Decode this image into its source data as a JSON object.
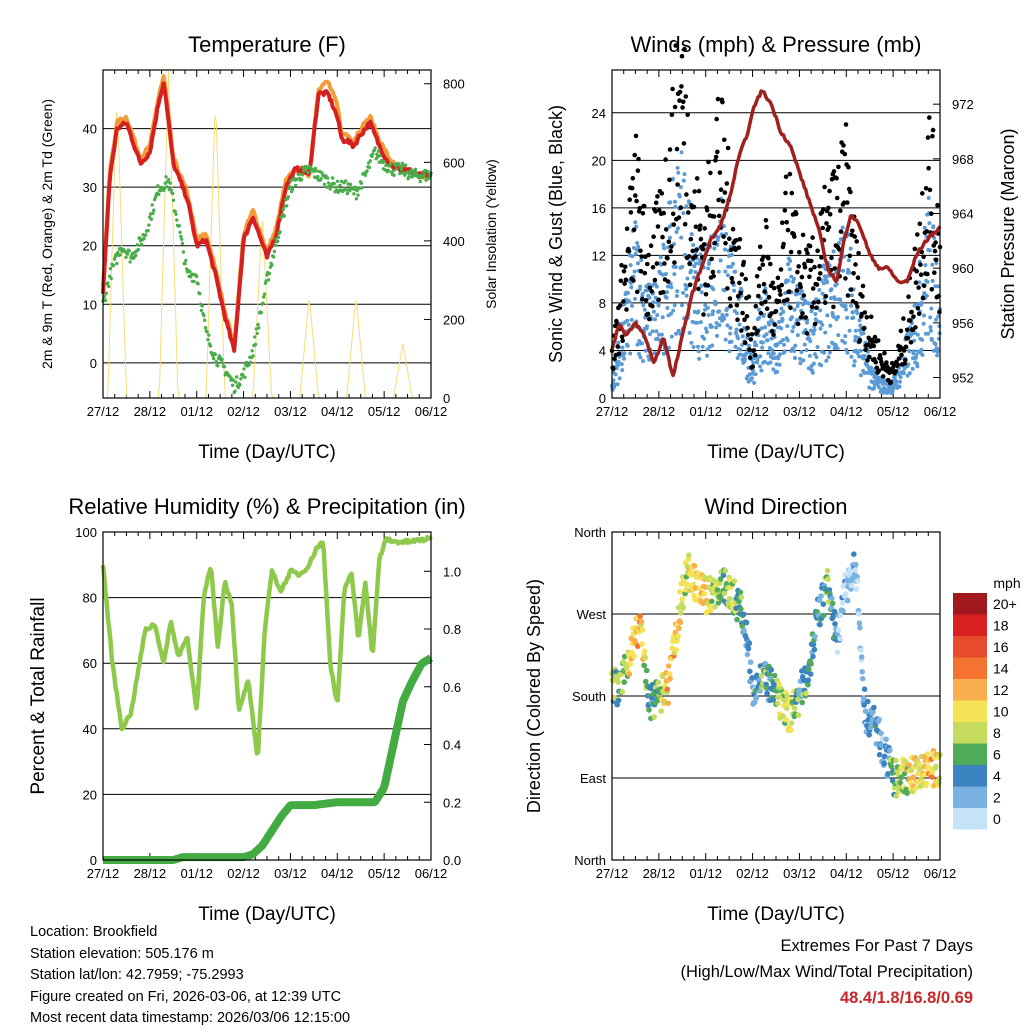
{
  "chart_data": [
    {
      "type": "line",
      "title": "Temperature (F)",
      "xlabel": "Time (Day/UTC)",
      "ylabel": "2m & 9m T (Red, Orange) & 2m Td (Green)",
      "y2label": "Solar Insolation (Yellow)",
      "x_ticks": [
        "27/12",
        "28/12",
        "01/12",
        "02/12",
        "03/12",
        "04/12",
        "05/12",
        "06/12"
      ],
      "ylim": [
        -6,
        50
      ],
      "yticks": [
        0,
        10,
        20,
        30,
        40
      ],
      "y2lim": [
        0,
        835
      ],
      "y2ticks": [
        0,
        200,
        400,
        600,
        800
      ],
      "series": [
        {
          "name": "2m T",
          "color": "#d42020",
          "x": [
            0,
            0.15,
            0.3,
            0.5,
            0.8,
            1.0,
            1.2,
            1.3,
            1.5,
            1.8,
            2.0,
            2.2,
            2.4,
            2.6,
            2.8,
            3.0,
            3.2,
            3.5,
            3.7,
            3.9,
            4.1,
            4.25,
            4.4,
            4.6,
            4.8,
            5.0,
            5.1,
            5.2,
            5.35,
            5.5,
            5.7,
            5.9,
            6.1,
            6.3,
            6.5,
            6.7,
            7.0
          ],
          "values": [
            12,
            32,
            40,
            41,
            34,
            36,
            45,
            48,
            34,
            28,
            20,
            21,
            15,
            8,
            2,
            21,
            25,
            18,
            22,
            30,
            33,
            33,
            32,
            46,
            46,
            42,
            38,
            38,
            37,
            39,
            41,
            37,
            34,
            33,
            33,
            32,
            32
          ]
        },
        {
          "name": "9m T",
          "color": "#f39b38",
          "x": [
            0,
            0.15,
            0.3,
            0.5,
            0.8,
            1.0,
            1.2,
            1.3,
            1.5,
            1.8,
            2.0,
            2.2,
            2.4,
            2.6,
            2.8,
            3.0,
            3.2,
            3.5,
            3.7,
            3.9,
            4.1,
            4.25,
            4.4,
            4.6,
            4.8,
            5.0,
            5.1,
            5.2,
            5.35,
            5.5,
            5.7,
            5.9,
            6.1,
            6.3,
            6.5,
            6.7,
            7.0
          ],
          "values": [
            13,
            33,
            41,
            42,
            35,
            37,
            46,
            49,
            35,
            29,
            21,
            22,
            16,
            9,
            3,
            22,
            26,
            19,
            23,
            31,
            33,
            33,
            32,
            47,
            48,
            44,
            39,
            39,
            38,
            40,
            42,
            38,
            35,
            33,
            33,
            32,
            32
          ]
        },
        {
          "name": "2m Td",
          "color": "#49ad49",
          "x": [
            0,
            0.15,
            0.4,
            0.6,
            0.9,
            1.2,
            1.4,
            1.6,
            1.8,
            2.0,
            2.2,
            2.4,
            2.6,
            2.8,
            3.0,
            3.2,
            3.5,
            3.8,
            4.0,
            4.2,
            4.4,
            4.6,
            4.8,
            5.0,
            5.2,
            5.4,
            5.6,
            5.8,
            6.0,
            6.2,
            6.4,
            6.6,
            7.0
          ],
          "values": [
            10,
            15,
            20,
            18,
            22,
            30,
            31,
            24,
            15,
            15,
            5,
            1,
            -1,
            -4,
            -2,
            2,
            14,
            24,
            30,
            32,
            33,
            32,
            31,
            30,
            30,
            29,
            32,
            36,
            34,
            33,
            33,
            32,
            32
          ]
        },
        {
          "name": "Solar Insolation",
          "axis": "right",
          "color": "#f6dd78",
          "x": [
            0.1,
            0.3,
            0.5,
            1.2,
            1.4,
            1.6,
            2.2,
            2.4,
            2.6,
            3.2,
            3.4,
            3.6,
            4.2,
            4.4,
            4.6,
            5.2,
            5.4,
            5.6,
            6.2,
            6.4,
            6.6
          ],
          "values": [
            0,
            780,
            0,
            0,
            840,
            0,
            0,
            770,
            0,
            0,
            460,
            0,
            0,
            260,
            0,
            0,
            260,
            0,
            0,
            140,
            0
          ]
        }
      ]
    },
    {
      "type": "scatter",
      "title": "Winds (mph) & Pressure (mb)",
      "xlabel": "Time (Day/UTC)",
      "ylabel": "Sonic Wind & Gust (Blue, Black)",
      "y2label": "Station Pressure (Maroon)",
      "x_ticks": [
        "27/12",
        "28/12",
        "01/12",
        "02/12",
        "03/12",
        "04/12",
        "05/12",
        "06/12"
      ],
      "ylim": [
        0,
        27.6
      ],
      "yticks": [
        0,
        4,
        8,
        12,
        16,
        20,
        24
      ],
      "y2lim": [
        950.5,
        974.5
      ],
      "y2ticks": [
        952,
        956,
        960,
        964,
        968,
        972
      ],
      "series": [
        {
          "name": "Gust",
          "color": "#000000",
          "x": [
            0,
            0.25,
            0.5,
            0.75,
            1.0,
            1.25,
            1.5,
            1.75,
            2.0,
            2.25,
            2.5,
            2.75,
            3.0,
            3.25,
            3.5,
            3.75,
            4.0,
            4.25,
            4.5,
            4.75,
            5.0,
            5.25,
            5.5,
            5.75,
            6.0,
            6.25,
            6.5,
            6.75,
            7.0
          ],
          "values": [
            3,
            9,
            16,
            10,
            12,
            18,
            24,
            14,
            12,
            20,
            14,
            10,
            4,
            12,
            6,
            14,
            10,
            9,
            12,
            14,
            16,
            9,
            5,
            3,
            2,
            5,
            10,
            18,
            12
          ]
        },
        {
          "name": "Sonic Wind",
          "color": "#5a9bd5",
          "x": [
            0,
            0.25,
            0.5,
            0.75,
            1.0,
            1.25,
            1.5,
            1.75,
            2.0,
            2.25,
            2.5,
            2.75,
            3.0,
            3.25,
            3.5,
            3.75,
            4.0,
            4.25,
            4.5,
            4.75,
            5.0,
            5.25,
            5.5,
            5.75,
            6.0,
            6.25,
            6.5,
            6.75,
            7.0
          ],
          "values": [
            1,
            5,
            10,
            6,
            7,
            11,
            14,
            8,
            8,
            12,
            9,
            6,
            2,
            7,
            3,
            8,
            6,
            5,
            7,
            8,
            10,
            5,
            2,
            1,
            1,
            3,
            6,
            11,
            7
          ]
        },
        {
          "name": "Station Pressure",
          "axis": "right",
          "color": "#a01f1f",
          "x": [
            0,
            0.15,
            0.3,
            0.5,
            0.7,
            0.9,
            1.1,
            1.3,
            1.5,
            1.7,
            1.9,
            2.1,
            2.3,
            2.5,
            2.7,
            2.9,
            3.05,
            3.2,
            3.4,
            3.6,
            3.8,
            4.0,
            4.2,
            4.4,
            4.6,
            4.8,
            4.95,
            5.1,
            5.3,
            5.5,
            5.7,
            5.9,
            6.1,
            6.3,
            6.5,
            6.7,
            7.0
          ],
          "values": [
            954,
            956,
            955,
            956,
            955,
            953,
            955,
            952,
            955,
            958,
            960,
            962,
            963,
            965,
            968,
            970,
            972,
            973,
            972,
            970,
            969,
            967,
            965,
            963,
            960,
            959,
            962,
            964,
            963,
            961,
            960,
            960,
            959,
            959,
            961,
            962,
            963
          ]
        }
      ]
    },
    {
      "type": "line",
      "title": "Relative Humidity (%) & Precipitation (in)",
      "xlabel": "Time (Day/UTC)",
      "ylabel": "Percent & Total Rainfall",
      "x_ticks": [
        "27/12",
        "28/12",
        "01/12",
        "02/12",
        "03/12",
        "04/12",
        "05/12",
        "06/12"
      ],
      "ylim": [
        0,
        100
      ],
      "yticks": [
        0,
        20,
        40,
        60,
        80,
        100
      ],
      "y2lim": [
        0,
        1.136
      ],
      "y2ticks": [
        0.0,
        0.2,
        0.4,
        0.6,
        0.8,
        1.0
      ],
      "series": [
        {
          "name": "Relative Humidity",
          "color": "#8fc94c",
          "x": [
            0,
            0.2,
            0.4,
            0.6,
            0.9,
            1.1,
            1.3,
            1.45,
            1.6,
            1.8,
            2.0,
            2.15,
            2.3,
            2.45,
            2.6,
            2.75,
            2.9,
            3.1,
            3.3,
            3.45,
            3.6,
            3.8,
            4.0,
            4.2,
            4.4,
            4.55,
            4.7,
            4.85,
            5.0,
            5.15,
            5.3,
            5.45,
            5.6,
            5.75,
            5.9,
            6.05,
            6.2,
            6.5,
            7.0
          ],
          "values": [
            90,
            60,
            40,
            45,
            70,
            72,
            60,
            73,
            62,
            68,
            45,
            80,
            90,
            65,
            85,
            78,
            45,
            55,
            30,
            70,
            88,
            82,
            88,
            87,
            90,
            95,
            97,
            60,
            47,
            82,
            88,
            67,
            85,
            62,
            92,
            98,
            97,
            97,
            98
          ]
        },
        {
          "name": "Total Precipitation",
          "axis": "right",
          "color": "#42ab42",
          "x": [
            0,
            1.5,
            1.7,
            3.0,
            3.2,
            3.4,
            3.6,
            3.8,
            4.0,
            4.5,
            5.0,
            5.8,
            6.0,
            6.2,
            6.4,
            6.6,
            6.8,
            7.0
          ],
          "values": [
            0,
            0,
            0.01,
            0.01,
            0.02,
            0.05,
            0.1,
            0.15,
            0.19,
            0.19,
            0.2,
            0.2,
            0.25,
            0.4,
            0.55,
            0.62,
            0.68,
            0.7
          ]
        }
      ]
    },
    {
      "type": "scatter",
      "title": "Wind Direction",
      "xlabel": "Time (Day/UTC)",
      "ylabel": "Direction (Colored By Speed)",
      "x_ticks": [
        "27/12",
        "28/12",
        "01/12",
        "02/12",
        "03/12",
        "04/12",
        "05/12",
        "06/12"
      ],
      "y_ticks": [
        "North",
        "East",
        "South",
        "West",
        "North"
      ],
      "ylim": [
        0,
        360
      ],
      "colorbar_title": "mph",
      "colorbar_labels": [
        "20+",
        "18",
        "16",
        "14",
        "12",
        "10",
        "8",
        "6",
        "4",
        "2",
        "0"
      ],
      "colorbar_colors": [
        "#a1191e",
        "#d7201f",
        "#e84b2c",
        "#f47330",
        "#f9ad4c",
        "#f4e257",
        "#c6dc5e",
        "#4fab5a",
        "#3c83c1",
        "#79b2e0",
        "#c5e3f6"
      ],
      "x": [
        0.2,
        0.4,
        0.6,
        0.8,
        1.0,
        1.2,
        1.4,
        1.6,
        1.8,
        2.0,
        2.2,
        2.4,
        2.6,
        2.8,
        3.0,
        3.2,
        3.4,
        3.6,
        3.8,
        4.0,
        4.2,
        4.4,
        4.6,
        4.8,
        5.0,
        5.2,
        5.4,
        5.6,
        5.8,
        6.0,
        6.2,
        6.4,
        6.6,
        6.8,
        7.0
      ],
      "values": [
        190,
        230,
        260,
        170,
        180,
        190,
        260,
        320,
        300,
        290,
        295,
        300,
        290,
        270,
        190,
        200,
        190,
        170,
        160,
        180,
        210,
        270,
        300,
        240,
        300,
        320,
        160,
        150,
        120,
        90,
        90,
        95,
        95,
        100,
        102
      ],
      "speeds": [
        6,
        10,
        12,
        4,
        6,
        12,
        10,
        8,
        12,
        10,
        8,
        6,
        8,
        4,
        2,
        6,
        4,
        8,
        10,
        4,
        6,
        4,
        6,
        2,
        1,
        1,
        2,
        4,
        2,
        6,
        8,
        10,
        10,
        12,
        8
      ]
    }
  ],
  "info": {
    "location": "Location: Brookfield",
    "elevation": "Station elevation: 505.176 m",
    "latlon": "Station lat/lon: 42.7959; -75.2993",
    "created": "Figure created on Fri, 2026-03-06, at 12:39 UTC",
    "timestamp": "Most recent data timestamp: 2026/03/06 12:15:00"
  },
  "extremes": {
    "title": "Extremes For Past 7 Days",
    "subtitle": "(High/Low/Max Wind/Total Precipitation)",
    "values": "48.4/1.8/16.8/0.69"
  }
}
